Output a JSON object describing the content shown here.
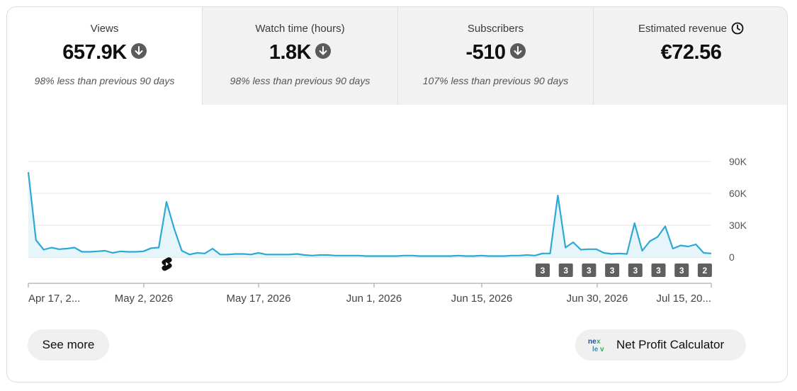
{
  "tabs": [
    {
      "label": "Views",
      "value": "657.9K",
      "trend": "down",
      "comparison": "98% less than previous 90 days"
    },
    {
      "label": "Watch time (hours)",
      "value": "1.8K",
      "trend": "down",
      "comparison": "98% less than previous 90 days"
    },
    {
      "label": "Subscribers",
      "value": "-510",
      "trend": "down",
      "comparison": "107% less than previous 90 days"
    },
    {
      "label": "Estimated revenue",
      "value": "€72.56",
      "icon": "clock-icon"
    }
  ],
  "chart_data": {
    "type": "area",
    "series": [
      {
        "name": "Views",
        "color": "#2ea8d4",
        "values": [
          80000,
          16000,
          7000,
          9000,
          7500,
          8000,
          9000,
          5000,
          5000,
          5500,
          6000,
          4000,
          5500,
          5000,
          5000,
          5500,
          8500,
          9000,
          52000,
          27000,
          6000,
          2500,
          4000,
          3500,
          8000,
          2500,
          2500,
          3000,
          3000,
          2500,
          4000,
          2500,
          2500,
          2500,
          2500,
          3000,
          2000,
          1500,
          2000,
          2000,
          1500,
          1500,
          1500,
          1500,
          1000,
          1000,
          1000,
          1000,
          1000,
          1500,
          1500,
          1000,
          1000,
          1000,
          1000,
          1000,
          1500,
          1000,
          1000,
          1500,
          1000,
          1000,
          1000,
          1500,
          1500,
          2000,
          1500,
          3500,
          3500,
          58000,
          9000,
          14000,
          7000,
          7500,
          7500,
          4000,
          3000,
          3500,
          3000,
          32000,
          6000,
          15000,
          19000,
          29000,
          8000,
          11000,
          10000,
          12000,
          4000,
          3500
        ]
      }
    ],
    "y_ticks": [
      "90K",
      "60K",
      "30K",
      "0"
    ],
    "ylim": [
      0,
      90000
    ],
    "x_labels": [
      "Apr 17, 2...",
      "May 2, 2026",
      "May 17, 2026",
      "Jun 1, 2026",
      "Jun 15, 2026",
      "Jun 30, 2026",
      "Jul 15, 20..."
    ],
    "markers": [
      "3",
      "3",
      "3",
      "3",
      "3",
      "3",
      "3",
      "2"
    ],
    "grid": true
  },
  "buttons": {
    "see_more": "See more",
    "net_profit": "Net Profit Calculator"
  },
  "net_profit_logo_text": "nexlev"
}
